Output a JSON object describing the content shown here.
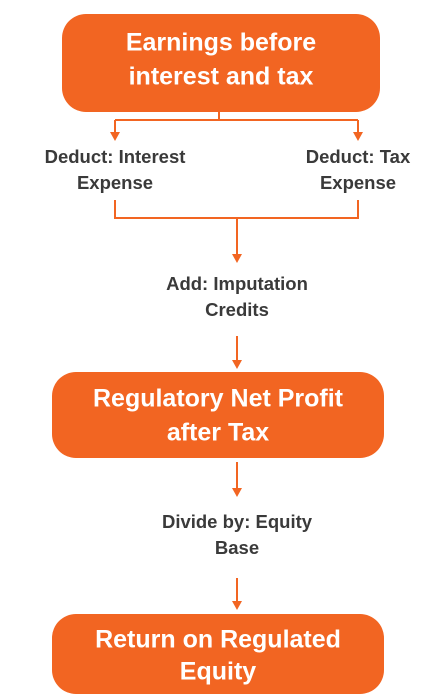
{
  "nodes": [
    {
      "lines": [
        "Earnings before",
        "interest and tax"
      ]
    },
    {
      "lines": [
        "Regulatory Net Profit",
        "after Tax"
      ]
    },
    {
      "lines": [
        "Return on Regulated",
        "Equity"
      ]
    }
  ],
  "steps": [
    {
      "lines": [
        "Deduct: Interest",
        "Expense"
      ]
    },
    {
      "lines": [
        "Deduct: Tax",
        "Expense"
      ]
    },
    {
      "lines": [
        "Add: Imputation",
        "Credits"
      ]
    },
    {
      "lines": [
        "Divide by: Equity",
        "Base"
      ]
    }
  ]
}
